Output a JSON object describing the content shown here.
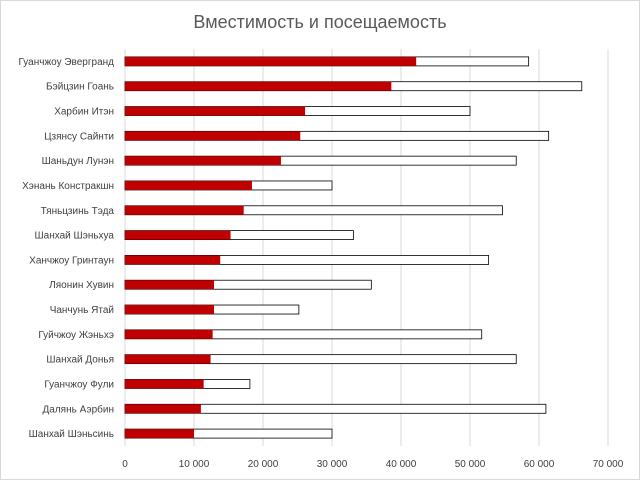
{
  "chart_data": {
    "type": "bar",
    "orientation": "horizontal",
    "title": "Вместимость и посещаемость",
    "categories": [
      "Гуанчжоу Эвергранд",
      "Бэйцзин Гоань",
      "Харбин Итэн",
      "Цзянсу Сайнти",
      "Шаньдун Лунэн",
      "Хэнань Констракшн",
      "Тяньцзинь Тэда",
      "Шанхай Шэньхуа",
      "Ханчжоу Гринтаун",
      "Ляонин Хувин",
      "Чанчунь Ятай",
      "Гуйчжоу Жэньхэ",
      "Шанхай Донья",
      "Гуанчжоу Фули",
      "Далянь Аэрбин",
      "Шанхай Шэньсинь"
    ],
    "series": [
      {
        "color": "#c00000",
        "values": [
          42200,
          38600,
          26100,
          25400,
          22600,
          18400,
          17200,
          15300,
          13800,
          12900,
          12900,
          12700,
          12400,
          11400,
          11000,
          10000
        ]
      },
      {
        "color": "#ffffff",
        "values": [
          58500,
          66200,
          50000,
          61400,
          56700,
          30000,
          54700,
          33100,
          52700,
          35700,
          25200,
          51700,
          56700,
          18100,
          61000,
          30000
        ]
      }
    ],
    "xlim": [
      0,
      70000
    ],
    "xticks": [
      0,
      10000,
      20000,
      30000,
      40000,
      50000,
      60000,
      70000
    ],
    "xtick_labels": [
      "0",
      "10 000",
      "20 000",
      "30 000",
      "40 000",
      "50 000",
      "60 000",
      "70 000"
    ],
    "grid": true,
    "legend": "none"
  }
}
